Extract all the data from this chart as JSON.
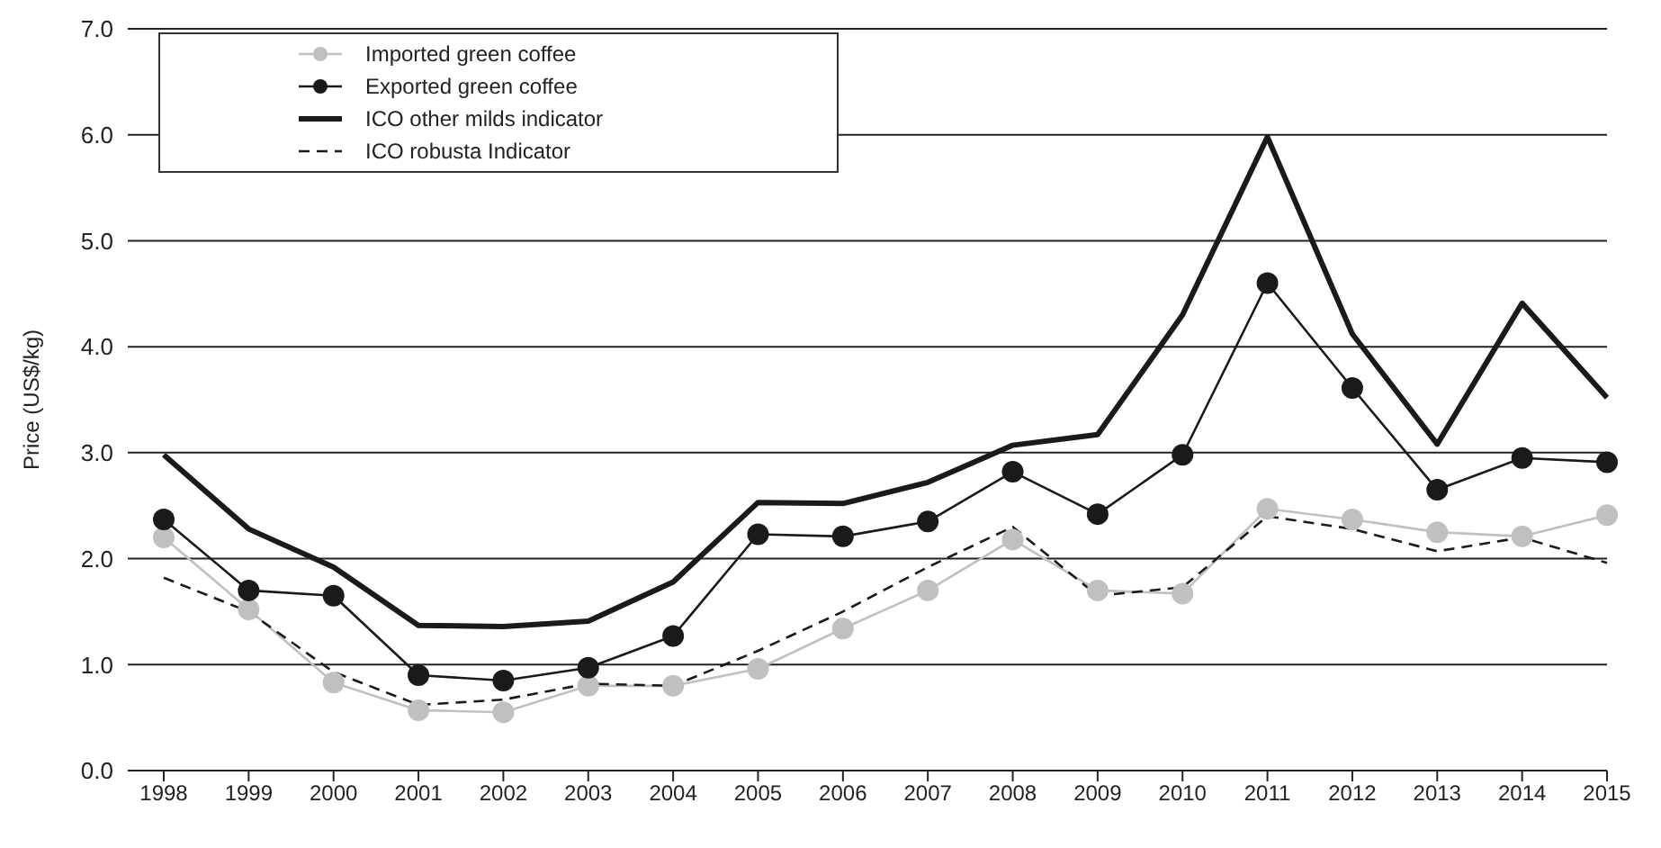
{
  "chart_data": {
    "type": "line",
    "ylabel": "Price (US$/kg)",
    "categories": [
      "1998",
      "1999",
      "2000",
      "2001",
      "2002",
      "2003",
      "2004",
      "2005",
      "2006",
      "2007",
      "2008",
      "2009",
      "2010",
      "2011",
      "2012",
      "2013",
      "2014",
      "2015"
    ],
    "series": [
      {
        "name": "Imported green coffee",
        "color": "#c0c0c0",
        "marker": "circle",
        "line_style": "solid",
        "values": [
          2.2,
          1.52,
          0.83,
          0.57,
          0.55,
          0.8,
          0.8,
          0.96,
          1.34,
          1.7,
          2.18,
          1.7,
          1.67,
          2.47,
          2.37,
          2.25,
          2.21,
          2.41
        ]
      },
      {
        "name": "Exported green coffee",
        "color": "#1a1a1a",
        "marker": "circle",
        "line_style": "solid",
        "values": [
          2.37,
          1.7,
          1.65,
          0.9,
          0.85,
          0.97,
          1.27,
          2.23,
          2.21,
          2.35,
          2.82,
          2.42,
          2.98,
          4.6,
          3.61,
          2.65,
          2.95,
          2.91
        ]
      },
      {
        "name": "ICO other milds indicator",
        "color": "#1a1a1a",
        "marker": "none",
        "line_style": "solid",
        "values": [
          2.98,
          2.28,
          1.92,
          1.37,
          1.36,
          1.41,
          1.78,
          2.53,
          2.52,
          2.72,
          3.07,
          3.17,
          4.3,
          5.98,
          4.12,
          3.08,
          4.41,
          3.52
        ]
      },
      {
        "name": "ICO robusta Indicator",
        "color": "#1a1a1a",
        "marker": "none",
        "line_style": "dashed",
        "values": [
          1.82,
          1.5,
          0.93,
          0.62,
          0.67,
          0.82,
          0.8,
          1.13,
          1.5,
          1.92,
          2.3,
          1.65,
          1.73,
          2.4,
          2.28,
          2.07,
          2.2,
          1.96
        ]
      }
    ],
    "ylim": [
      0,
      7
    ],
    "yticks": [
      {
        "value": 0,
        "label": "0.0"
      },
      {
        "value": 1,
        "label": "1.0"
      },
      {
        "value": 2,
        "label": "2.0"
      },
      {
        "value": 3,
        "label": "3.0"
      },
      {
        "value": 4,
        "label": "4.0"
      },
      {
        "value": 5,
        "label": "5.0"
      },
      {
        "value": 6,
        "label": "6.0"
      },
      {
        "value": 7,
        "label": "7.0"
      }
    ],
    "grid": "y",
    "legend": "top left"
  }
}
